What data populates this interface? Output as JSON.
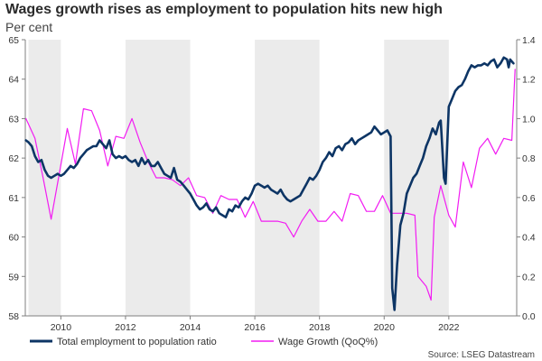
{
  "chart_data": {
    "type": "line",
    "title": "Wages growth rises as employment to population hits new high",
    "subtitle": "Per cent",
    "source": "Source: LSEG Datastream",
    "x_ticks": [
      "2010",
      "2012",
      "2014",
      "2016",
      "2018",
      "2020",
      "2022"
    ],
    "xlim": [
      2008.9,
      2024.1
    ],
    "y_left": {
      "ticks": [
        "58",
        "59",
        "60",
        "61",
        "62",
        "63",
        "64",
        "65"
      ],
      "lim": [
        58,
        65
      ]
    },
    "y_right": {
      "ticks": [
        "0.0",
        "0.2",
        "0.4",
        "0.6",
        "0.8",
        "1.0",
        "1.2",
        "1.4"
      ],
      "lim": [
        0.0,
        1.4
      ]
    },
    "shaded_years": [
      [
        2009,
        2010
      ],
      [
        2012,
        2014
      ],
      [
        2016,
        2018
      ],
      [
        2020,
        2022
      ]
    ],
    "grid": false,
    "legend_position": "bottom",
    "series": [
      {
        "name": "Total employment to population ratio",
        "axis": "left",
        "color": "#0d3565",
        "points": [
          [
            2008.92,
            62.45
          ],
          [
            2009.0,
            62.4
          ],
          [
            2009.1,
            62.3
          ],
          [
            2009.2,
            62.05
          ],
          [
            2009.3,
            61.9
          ],
          [
            2009.4,
            61.95
          ],
          [
            2009.5,
            61.7
          ],
          [
            2009.6,
            61.55
          ],
          [
            2009.7,
            61.5
          ],
          [
            2009.8,
            61.55
          ],
          [
            2009.9,
            61.6
          ],
          [
            2010.0,
            61.55
          ],
          [
            2010.1,
            61.6
          ],
          [
            2010.2,
            61.7
          ],
          [
            2010.3,
            61.8
          ],
          [
            2010.4,
            61.75
          ],
          [
            2010.5,
            61.85
          ],
          [
            2010.6,
            62.0
          ],
          [
            2010.7,
            62.1
          ],
          [
            2010.8,
            62.2
          ],
          [
            2010.9,
            62.25
          ],
          [
            2011.0,
            62.3
          ],
          [
            2011.1,
            62.3
          ],
          [
            2011.2,
            62.45
          ],
          [
            2011.3,
            62.35
          ],
          [
            2011.4,
            62.25
          ],
          [
            2011.5,
            62.45
          ],
          [
            2011.6,
            62.1
          ],
          [
            2011.7,
            62.0
          ],
          [
            2011.8,
            62.05
          ],
          [
            2011.9,
            62.0
          ],
          [
            2012.0,
            62.05
          ],
          [
            2012.1,
            61.95
          ],
          [
            2012.2,
            61.9
          ],
          [
            2012.3,
            61.95
          ],
          [
            2012.4,
            61.8
          ],
          [
            2012.5,
            62.0
          ],
          [
            2012.6,
            61.85
          ],
          [
            2012.7,
            61.95
          ],
          [
            2012.8,
            61.8
          ],
          [
            2012.9,
            61.8
          ],
          [
            2013.0,
            61.9
          ],
          [
            2013.1,
            61.75
          ],
          [
            2013.2,
            61.6
          ],
          [
            2013.3,
            61.55
          ],
          [
            2013.4,
            61.5
          ],
          [
            2013.5,
            61.75
          ],
          [
            2013.6,
            61.45
          ],
          [
            2013.7,
            61.4
          ],
          [
            2013.8,
            61.3
          ],
          [
            2013.9,
            61.2
          ],
          [
            2014.0,
            61.1
          ],
          [
            2014.1,
            60.95
          ],
          [
            2014.2,
            60.8
          ],
          [
            2014.3,
            60.7
          ],
          [
            2014.4,
            60.75
          ],
          [
            2014.5,
            60.85
          ],
          [
            2014.6,
            60.7
          ],
          [
            2014.7,
            60.65
          ],
          [
            2014.8,
            60.75
          ],
          [
            2014.9,
            60.6
          ],
          [
            2015.0,
            60.55
          ],
          [
            2015.1,
            60.5
          ],
          [
            2015.2,
            60.7
          ],
          [
            2015.3,
            60.65
          ],
          [
            2015.4,
            60.8
          ],
          [
            2015.5,
            60.75
          ],
          [
            2015.6,
            60.9
          ],
          [
            2015.7,
            61.0
          ],
          [
            2015.8,
            60.95
          ],
          [
            2015.9,
            61.1
          ],
          [
            2016.0,
            61.3
          ],
          [
            2016.1,
            61.35
          ],
          [
            2016.2,
            61.3
          ],
          [
            2016.3,
            61.25
          ],
          [
            2016.4,
            61.3
          ],
          [
            2016.5,
            61.2
          ],
          [
            2016.6,
            61.15
          ],
          [
            2016.7,
            61.1
          ],
          [
            2016.8,
            61.2
          ],
          [
            2016.9,
            61.05
          ],
          [
            2017.0,
            60.95
          ],
          [
            2017.1,
            60.9
          ],
          [
            2017.2,
            60.95
          ],
          [
            2017.3,
            61.0
          ],
          [
            2017.4,
            61.05
          ],
          [
            2017.5,
            61.2
          ],
          [
            2017.6,
            61.35
          ],
          [
            2017.7,
            61.5
          ],
          [
            2017.8,
            61.45
          ],
          [
            2017.9,
            61.55
          ],
          [
            2018.0,
            61.7
          ],
          [
            2018.1,
            61.9
          ],
          [
            2018.2,
            62.0
          ],
          [
            2018.3,
            62.15
          ],
          [
            2018.4,
            62.05
          ],
          [
            2018.5,
            62.25
          ],
          [
            2018.6,
            62.3
          ],
          [
            2018.7,
            62.2
          ],
          [
            2018.8,
            62.35
          ],
          [
            2018.9,
            62.4
          ],
          [
            2019.0,
            62.5
          ],
          [
            2019.1,
            62.35
          ],
          [
            2019.2,
            62.45
          ],
          [
            2019.3,
            62.5
          ],
          [
            2019.4,
            62.55
          ],
          [
            2019.5,
            62.6
          ],
          [
            2019.6,
            62.65
          ],
          [
            2019.7,
            62.8
          ],
          [
            2019.8,
            62.7
          ],
          [
            2019.9,
            62.6
          ],
          [
            2020.0,
            62.65
          ],
          [
            2020.1,
            62.7
          ],
          [
            2020.2,
            62.55
          ],
          [
            2020.25,
            58.7
          ],
          [
            2020.32,
            58.15
          ],
          [
            2020.4,
            59.3
          ],
          [
            2020.5,
            60.3
          ],
          [
            2020.6,
            60.6
          ],
          [
            2020.7,
            61.1
          ],
          [
            2020.8,
            61.3
          ],
          [
            2020.9,
            61.5
          ],
          [
            2021.0,
            61.6
          ],
          [
            2021.1,
            61.8
          ],
          [
            2021.2,
            62.0
          ],
          [
            2021.3,
            62.3
          ],
          [
            2021.4,
            62.5
          ],
          [
            2021.5,
            62.75
          ],
          [
            2021.6,
            62.6
          ],
          [
            2021.7,
            62.9
          ],
          [
            2021.75,
            62.95
          ],
          [
            2021.85,
            61.5
          ],
          [
            2021.9,
            61.35
          ],
          [
            2022.0,
            63.3
          ],
          [
            2022.1,
            63.5
          ],
          [
            2022.2,
            63.7
          ],
          [
            2022.3,
            63.8
          ],
          [
            2022.4,
            63.85
          ],
          [
            2022.5,
            64.0
          ],
          [
            2022.6,
            64.2
          ],
          [
            2022.7,
            64.35
          ],
          [
            2022.8,
            64.3
          ],
          [
            2022.9,
            64.35
          ],
          [
            2023.0,
            64.35
          ],
          [
            2023.1,
            64.4
          ],
          [
            2023.2,
            64.35
          ],
          [
            2023.3,
            64.45
          ],
          [
            2023.4,
            64.5
          ],
          [
            2023.5,
            64.3
          ],
          [
            2023.6,
            64.4
          ],
          [
            2023.7,
            64.55
          ],
          [
            2023.8,
            64.5
          ],
          [
            2023.85,
            64.3
          ],
          [
            2023.9,
            64.5
          ],
          [
            2024.0,
            64.4
          ]
        ]
      },
      {
        "name": "Wage Growth (QoQ%)",
        "axis": "right",
        "color": "#f21cf2",
        "points": [
          [
            2008.92,
            1.0
          ],
          [
            2009.2,
            0.9
          ],
          [
            2009.45,
            0.7
          ],
          [
            2009.7,
            0.49
          ],
          [
            2009.95,
            0.72
          ],
          [
            2010.2,
            0.95
          ],
          [
            2010.45,
            0.77
          ],
          [
            2010.7,
            1.05
          ],
          [
            2010.95,
            1.04
          ],
          [
            2011.2,
            0.94
          ],
          [
            2011.45,
            0.76
          ],
          [
            2011.7,
            0.91
          ],
          [
            2011.95,
            0.9
          ],
          [
            2012.2,
            1.0
          ],
          [
            2012.45,
            0.88
          ],
          [
            2012.7,
            0.78
          ],
          [
            2012.95,
            0.7
          ],
          [
            2013.2,
            0.7
          ],
          [
            2013.45,
            0.69
          ],
          [
            2013.7,
            0.66
          ],
          [
            2013.95,
            0.7
          ],
          [
            2014.2,
            0.61
          ],
          [
            2014.45,
            0.6
          ],
          [
            2014.7,
            0.52
          ],
          [
            2014.95,
            0.61
          ],
          [
            2015.2,
            0.59
          ],
          [
            2015.45,
            0.59
          ],
          [
            2015.7,
            0.5
          ],
          [
            2015.95,
            0.58
          ],
          [
            2016.2,
            0.48
          ],
          [
            2016.45,
            0.48
          ],
          [
            2016.7,
            0.48
          ],
          [
            2016.95,
            0.47
          ],
          [
            2017.2,
            0.4
          ],
          [
            2017.45,
            0.48
          ],
          [
            2017.7,
            0.54
          ],
          [
            2017.95,
            0.48
          ],
          [
            2018.2,
            0.48
          ],
          [
            2018.45,
            0.53
          ],
          [
            2018.7,
            0.48
          ],
          [
            2018.95,
            0.62
          ],
          [
            2019.2,
            0.61
          ],
          [
            2019.45,
            0.53
          ],
          [
            2019.7,
            0.53
          ],
          [
            2019.95,
            0.61
          ],
          [
            2020.2,
            0.52
          ],
          [
            2020.45,
            0.52
          ],
          [
            2020.7,
            0.52
          ],
          [
            2020.95,
            0.51
          ],
          [
            2021.05,
            0.2
          ],
          [
            2021.3,
            0.15
          ],
          [
            2021.45,
            0.08
          ],
          [
            2021.55,
            0.5
          ],
          [
            2021.75,
            0.66
          ],
          [
            2022.0,
            0.51
          ],
          [
            2022.2,
            0.45
          ],
          [
            2022.45,
            0.78
          ],
          [
            2022.7,
            0.65
          ],
          [
            2022.95,
            0.85
          ],
          [
            2023.2,
            0.9
          ],
          [
            2023.45,
            0.82
          ],
          [
            2023.7,
            0.9
          ],
          [
            2023.95,
            0.89
          ],
          [
            2024.05,
            1.25
          ]
        ]
      }
    ]
  }
}
